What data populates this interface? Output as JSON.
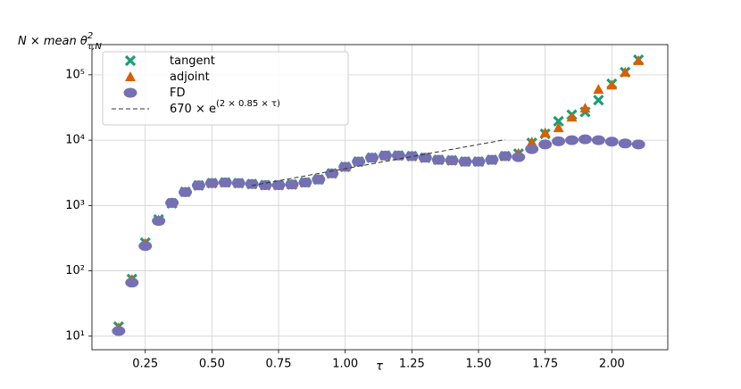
{
  "chart_data": {
    "type": "scatter",
    "y_label": {
      "main": "N ×  mean θ",
      "sup": "2",
      "sub": "τ,N"
    },
    "x_label": "τ",
    "log_y": true,
    "grid": true,
    "legend": "upper left",
    "xlim": [
      0.05,
      2.21
    ],
    "ylim": [
      6.2,
      290000
    ],
    "xticks": [
      0.25,
      {
        "value": 0.5,
        "label": "0.50"
      },
      0.75,
      {
        "value": 1,
        "label": "1.00"
      },
      1.25,
      {
        "value": 1.5,
        "label": "1.50"
      },
      1.75,
      {
        "value": 2,
        "label": "2.00"
      }
    ],
    "yticks": [
      {
        "value": 10,
        "label": "10¹"
      },
      {
        "value": 100,
        "label": "10²"
      },
      {
        "value": 1000,
        "label": "10³"
      },
      {
        "value": 10000,
        "label": "10⁴"
      },
      {
        "value": 100000,
        "label": "10⁵"
      }
    ],
    "x": [
      0.15,
      0.2,
      0.25,
      0.3,
      0.35,
      0.4,
      0.45,
      0.5,
      0.55,
      0.6,
      0.65,
      0.7,
      0.75,
      0.8,
      0.85,
      0.9,
      0.95,
      1.0,
      1.05,
      1.1,
      1.15,
      1.2,
      1.25,
      1.3,
      1.35,
      1.4,
      1.45,
      1.5,
      1.55,
      1.6,
      1.65,
      1.7,
      1.75,
      1.8,
      1.85,
      1.9,
      1.95,
      2.0,
      2.05,
      2.1
    ],
    "series": [
      {
        "name": "tangent",
        "color": "#1b9e77",
        "marker": "x",
        "values": [
          14,
          75,
          270,
          610,
          1080,
          1620,
          2030,
          2200,
          2250,
          2200,
          2130,
          2050,
          2050,
          2100,
          2250,
          2500,
          3100,
          3900,
          4700,
          5400,
          5800,
          5800,
          5700,
          5400,
          5000,
          4900,
          4700,
          4700,
          5000,
          5700,
          6200,
          9100,
          12500,
          19500,
          24500,
          27000,
          41000,
          73000,
          110000,
          170000
        ]
      },
      {
        "name": "adjoint",
        "color": "#d95f02",
        "marker": "triangle",
        "values": [
          13.5,
          74,
          265,
          600,
          1080,
          1620,
          2030,
          2200,
          2250,
          2200,
          2130,
          2050,
          2050,
          2100,
          2250,
          2500,
          3100,
          3900,
          4700,
          5400,
          5800,
          5800,
          5700,
          5400,
          5000,
          4900,
          4700,
          4700,
          5000,
          5700,
          6300,
          9400,
          13000,
          15500,
          22500,
          31000,
          60000,
          70000,
          110000,
          165000
        ]
      },
      {
        "name": "FD",
        "color": "#7570b3",
        "marker": "circle",
        "values": [
          12,
          66,
          240,
          580,
          1100,
          1600,
          2030,
          2200,
          2250,
          2200,
          2130,
          2050,
          2050,
          2100,
          2250,
          2500,
          3100,
          3900,
          4700,
          5400,
          5800,
          5800,
          5700,
          5400,
          5000,
          4900,
          4700,
          4700,
          5000,
          5700,
          5500,
          7300,
          8600,
          9600,
          10000,
          10300,
          10000,
          9500,
          8900,
          8600
        ]
      },
      {
        "name": "670 × e",
        "name_exponent": "(2 × 0.85 × τ)",
        "color": "#333333",
        "linestyle": "dashed",
        "x": [
          0.65,
          1.6
        ],
        "values": [
          2020,
          10170
        ]
      }
    ]
  }
}
